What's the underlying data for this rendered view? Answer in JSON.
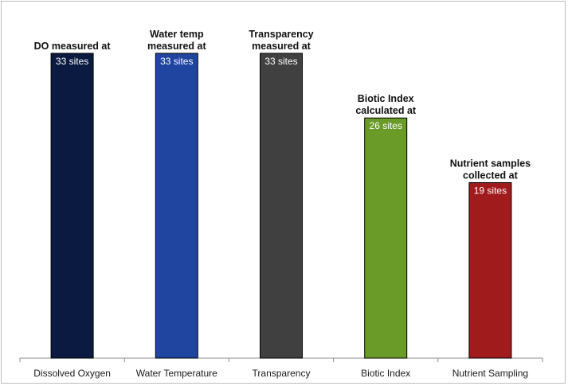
{
  "chart_data": {
    "type": "bar",
    "title": "",
    "xlabel": "",
    "ylabel": "",
    "categories": [
      "Dissolved Oxygen",
      "Water Temperature",
      "Transparency",
      "Biotic Index",
      "Nutrient Sampling"
    ],
    "values": [
      33,
      33,
      33,
      26,
      19
    ],
    "value_labels": [
      "33 sites",
      "33 sites",
      "33 sites",
      "26 sites",
      "19 sites"
    ],
    "annotations": [
      [
        "DO measured at"
      ],
      [
        "Water temp",
        "measured at"
      ],
      [
        "Transparency",
        "measured at"
      ],
      [
        "Biotic Index",
        "calculated at"
      ],
      [
        "Nutrient samples",
        "collected at"
      ]
    ],
    "colors": [
      "#0a1a40",
      "#1f45a0",
      "#404040",
      "#6a9a28",
      "#a01c1c"
    ],
    "ylim": [
      0,
      33
    ],
    "grid": false,
    "legend": "none"
  }
}
